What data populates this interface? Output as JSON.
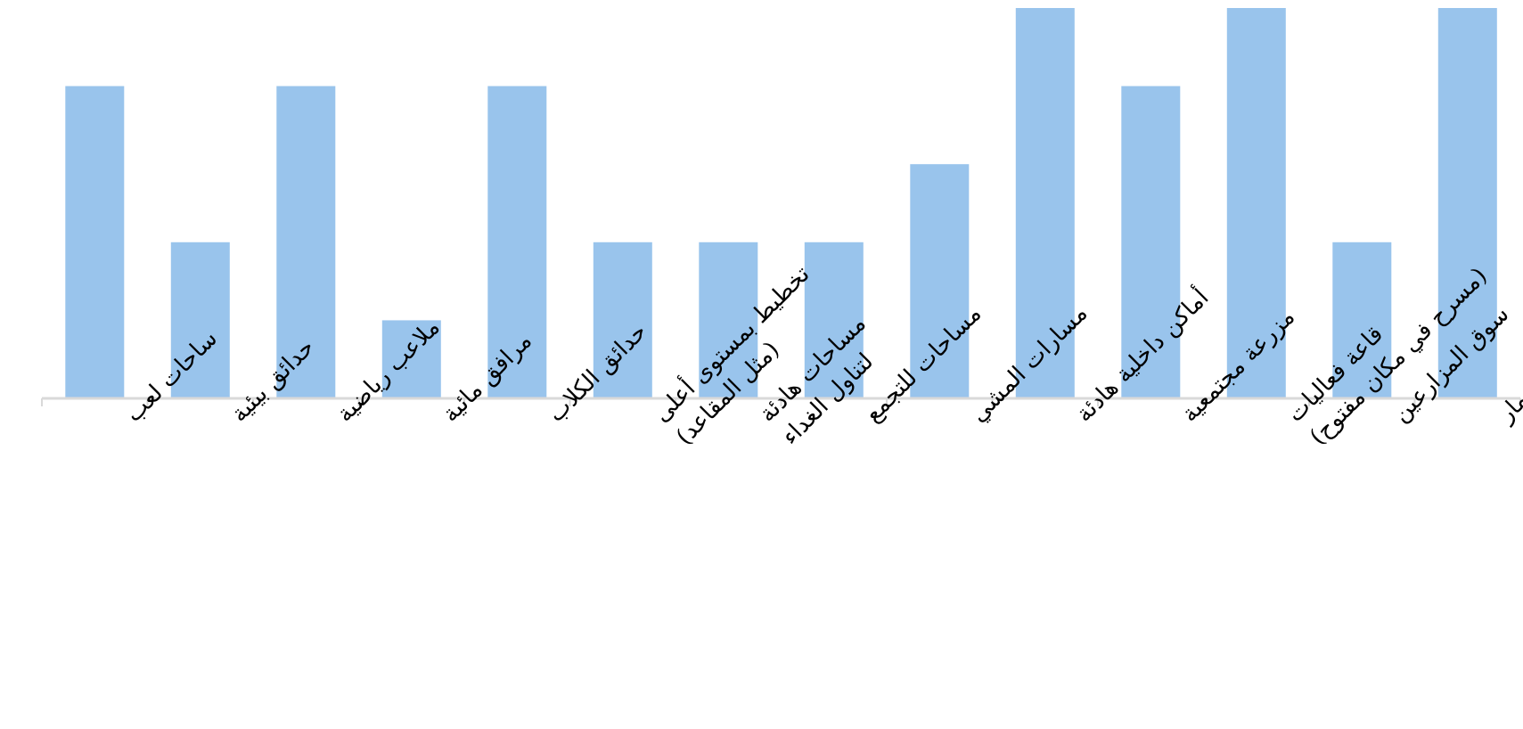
{
  "chart_data": {
    "type": "bar",
    "title": "",
    "xlabel": "",
    "ylabel": "",
    "ylim": [
      0,
      5
    ],
    "grid": false,
    "legend": "none",
    "bar_color": "#99c4ec",
    "axis_color": "#d9d9d9",
    "categories": [
      "ساحات لعب",
      "حدائق بيئية",
      "ملاعب رياضية",
      "مرافق مائية",
      "حدائق الكلاب",
      "تخطيط بمستوى أعلى (مثل المقاعد)",
      "مساحات هادئة لتناول الغداء",
      "مساحات للتجمع",
      "مسارات المشي",
      "أماكن داخلية هادئة",
      "مزرعة مجتمعية",
      "قاعة فعاليات (مسرح في مكان مفتوح)",
      "سوق المزارعين",
      "مسارات الدراجات/مضمار"
    ],
    "values": [
      4,
      2,
      4,
      1,
      4,
      2,
      2,
      2,
      3,
      5,
      4,
      5,
      2,
      5
    ]
  }
}
